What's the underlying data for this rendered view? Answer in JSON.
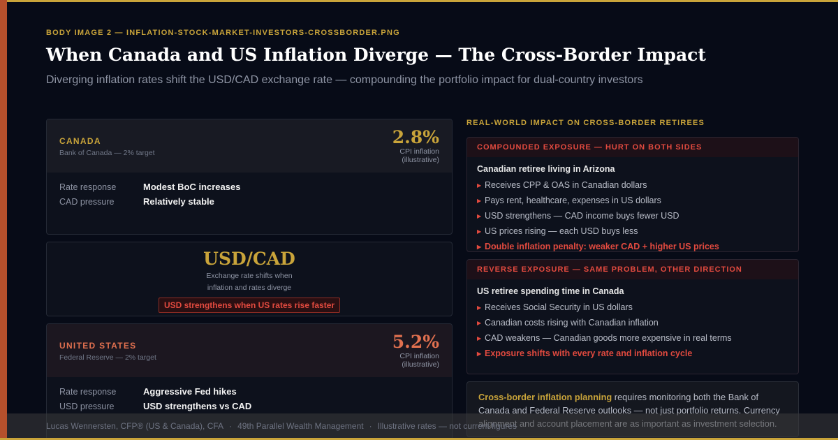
{
  "eyebrow": "BODY IMAGE 2 — INFLATION-STOCK-MARKET-INVESTORS-CROSSBORDER.PNG",
  "title": "When Canada and US Inflation Diverge — The Cross-Border Impact",
  "subtitle": "Diverging inflation rates shift the USD/CAD exchange rate — compounding the portfolio impact for dual-country investors",
  "canada": {
    "name": "CANADA",
    "target": "Bank of Canada — 2% target",
    "rate": "2.8%",
    "rate_cap_1": "CPI inflation",
    "rate_cap_2": "(illustrative)",
    "rows": [
      {
        "k": "Rate response",
        "v": "Modest BoC increases"
      },
      {
        "k": "CAD pressure",
        "v": "Relatively stable"
      }
    ]
  },
  "usdcad": {
    "pair": "USD/CAD",
    "cap_1": "Exchange rate shifts when",
    "cap_2": "inflation and rates diverge",
    "tag": "USD strengthens when US rates rise faster"
  },
  "us": {
    "name": "UNITED STATES",
    "target": "Federal Reserve — 2% target",
    "rate": "5.2%",
    "rate_cap_1": "CPI inflation",
    "rate_cap_2": "(illustrative)",
    "rows": [
      {
        "k": "Rate response",
        "v": "Aggressive Fed hikes"
      },
      {
        "k": "USD pressure",
        "v": "USD strengthens vs CAD"
      }
    ]
  },
  "right_heading": "REAL-WORLD IMPACT ON CROSS-BORDER RETIREES",
  "panel1": {
    "head": "COMPOUNDED EXPOSURE — HURT ON BOTH SIDES",
    "sub": "Canadian retiree living in Arizona",
    "bullets": [
      "Receives CPP & OAS in Canadian dollars",
      "Pays rent, healthcare, expenses in US dollars",
      "USD strengthens — CAD income buys fewer USD",
      "US prices rising — each USD buys less",
      "Double inflation penalty: weaker CAD + higher US prices"
    ]
  },
  "panel2": {
    "head": "REVERSE EXPOSURE — SAME PROBLEM, OTHER DIRECTION",
    "sub": "US retiree spending time in Canada",
    "bullets": [
      "Receives Social Security in US dollars",
      "Canadian costs rising with Canadian inflation",
      "CAD weakens — Canadian goods more expensive in real terms",
      "Exposure shifts with every rate and inflation cycle"
    ]
  },
  "note": {
    "lead": "Cross-border inflation planning",
    "text": " requires monitoring both the Bank of Canada and Federal Reserve outlooks — not just portfolio returns. Currency alignment and account placement are as important as investment selection."
  },
  "footer": {
    "author": "Lucas Wennersten, CFP® (US & Canada), CFA",
    "sep": "·",
    "firm": "49th Parallel Wealth Management",
    "disclaimer": "Illustrative rates — not current figures"
  },
  "colors": {
    "gold": "#c9a43a",
    "red": "#e24a3f",
    "orange": "#e0704f",
    "background": "#070b17"
  }
}
